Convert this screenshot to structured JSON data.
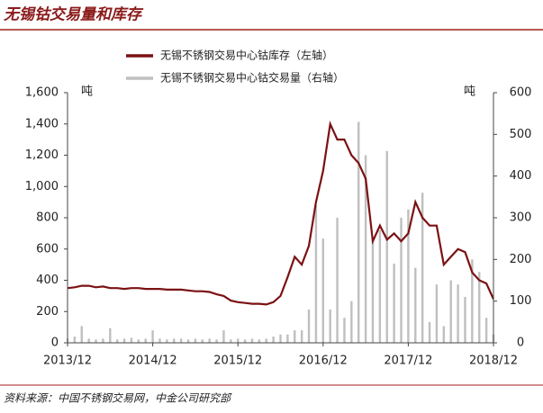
{
  "chart_data": {
    "type": "line_bar",
    "title": "无锡钴交易量和库存",
    "source": "资料来源：中国不锈钢交易网，中金公司研究部",
    "ylabel": "吨",
    "y2label": "吨",
    "x": [
      "2013/12",
      "2014/01",
      "2014/02",
      "2014/03",
      "2014/04",
      "2014/05",
      "2014/06",
      "2014/07",
      "2014/08",
      "2014/09",
      "2014/10",
      "2014/11",
      "2014/12",
      "2015/01",
      "2015/02",
      "2015/03",
      "2015/04",
      "2015/05",
      "2015/06",
      "2015/07",
      "2015/08",
      "2015/09",
      "2015/10",
      "2015/11",
      "2015/12",
      "2016/01",
      "2016/02",
      "2016/03",
      "2016/04",
      "2016/05",
      "2016/06",
      "2016/07",
      "2016/08",
      "2016/09",
      "2016/10",
      "2016/11",
      "2016/12",
      "2017/01",
      "2017/02",
      "2017/03",
      "2017/04",
      "2017/05",
      "2017/06",
      "2017/07",
      "2017/08",
      "2017/09",
      "2017/10",
      "2017/11",
      "2017/12",
      "2018/01",
      "2018/02",
      "2018/03",
      "2018/04",
      "2018/05",
      "2018/06",
      "2018/07",
      "2018/08",
      "2018/09",
      "2018/10",
      "2018/11",
      "2018/12"
    ],
    "xticks": [
      "2013/12",
      "2014/12",
      "2015/12",
      "2016/12",
      "2017/12",
      "2018/12"
    ],
    "series": [
      {
        "name": "无锡不锈钢交易中心钴库存（左轴）",
        "color": "#7b1113",
        "kind": "line",
        "values": [
          350,
          355,
          365,
          365,
          355,
          360,
          350,
          350,
          345,
          350,
          350,
          345,
          345,
          345,
          340,
          340,
          340,
          335,
          330,
          330,
          325,
          310,
          300,
          270,
          260,
          255,
          250,
          250,
          245,
          260,
          300,
          420,
          550,
          500,
          620,
          900,
          1100,
          1400,
          1300,
          1300,
          1200,
          1150,
          1050,
          650,
          750,
          660,
          700,
          650,
          700,
          900,
          800,
          750,
          750,
          500,
          550,
          600,
          580,
          450,
          400,
          380,
          280
        ]
      },
      {
        "name": "无锡不锈钢交易中心钴交易量（右轴）",
        "color": "#bfbfbf",
        "kind": "bar",
        "axis": "y2",
        "values": [
          10,
          15,
          40,
          10,
          8,
          10,
          35,
          8,
          10,
          12,
          8,
          10,
          30,
          10,
          8,
          10,
          10,
          8,
          10,
          8,
          10,
          8,
          30,
          8,
          10,
          8,
          10,
          8,
          10,
          15,
          20,
          20,
          30,
          30,
          80,
          330,
          250,
          80,
          300,
          60,
          100,
          530,
          450,
          250,
          270,
          460,
          190,
          300,
          320,
          180,
          360,
          50,
          140,
          40,
          150,
          140,
          110,
          200,
          170,
          60,
          20
        ]
      }
    ],
    "ylim": [
      0,
      1600
    ],
    "yticks": [
      0,
      200,
      400,
      600,
      800,
      {
        "value": 1000,
        "label": "1,000"
      },
      {
        "value": 1200,
        "label": "1,200"
      },
      {
        "value": 1400,
        "label": "1,400"
      },
      {
        "value": 1600,
        "label": "1,600"
      }
    ],
    "y2lim": [
      0,
      600
    ],
    "y2ticks": [
      0,
      100,
      200,
      300,
      400,
      500,
      600
    ]
  }
}
